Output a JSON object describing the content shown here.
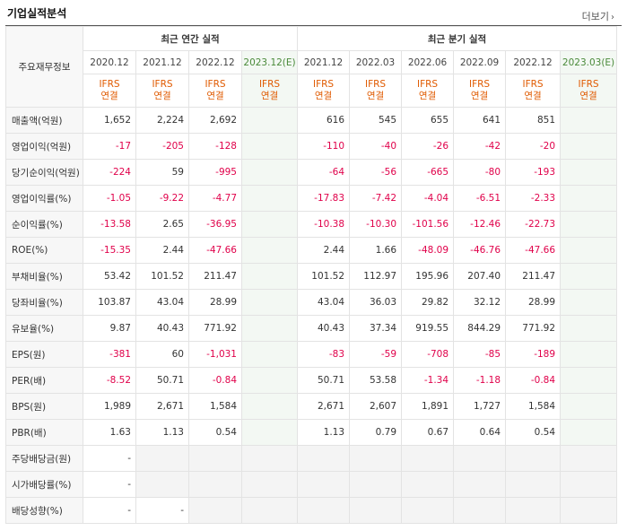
{
  "page": {
    "title": "기업실적분석",
    "more_label": "더보기"
  },
  "table": {
    "label_header": "주요재무정보",
    "group_annual": "최근 연간 실적",
    "group_quarter": "최근 분기 실적",
    "periods": [
      "2020.12",
      "2021.12",
      "2022.12",
      "2023.12(E)",
      "2021.12",
      "2022.03",
      "2022.06",
      "2022.09",
      "2022.12",
      "2023.03(E)"
    ],
    "ifrs_line1": "IFRS",
    "ifrs_line2": "연결",
    "rows": [
      {
        "label": "매출액(억원)",
        "values": [
          "1,652",
          "2,224",
          "2,692",
          "",
          "616",
          "545",
          "655",
          "641",
          "851",
          ""
        ]
      },
      {
        "label": "영업이익(억원)",
        "values": [
          "-17",
          "-205",
          "-128",
          "",
          "-110",
          "-40",
          "-26",
          "-42",
          "-20",
          ""
        ]
      },
      {
        "label": "당기순이익(억원)",
        "values": [
          "-224",
          "59",
          "-995",
          "",
          "-64",
          "-56",
          "-665",
          "-80",
          "-193",
          ""
        ]
      },
      {
        "label": "영업이익률(%)",
        "values": [
          "-1.05",
          "-9.22",
          "-4.77",
          "",
          "-17.83",
          "-7.42",
          "-4.04",
          "-6.51",
          "-2.33",
          ""
        ]
      },
      {
        "label": "순이익률(%)",
        "values": [
          "-13.58",
          "2.65",
          "-36.95",
          "",
          "-10.38",
          "-10.30",
          "-101.56",
          "-12.46",
          "-22.73",
          ""
        ]
      },
      {
        "label": "ROE(%)",
        "values": [
          "-15.35",
          "2.44",
          "-47.66",
          "",
          "2.44",
          "1.66",
          "-48.09",
          "-46.76",
          "-47.66",
          ""
        ]
      },
      {
        "label": "부채비율(%)",
        "values": [
          "53.42",
          "101.52",
          "211.47",
          "",
          "101.52",
          "112.97",
          "195.96",
          "207.40",
          "211.47",
          ""
        ]
      },
      {
        "label": "당좌비율(%)",
        "values": [
          "103.87",
          "43.04",
          "28.99",
          "",
          "43.04",
          "36.03",
          "29.82",
          "32.12",
          "28.99",
          ""
        ]
      },
      {
        "label": "유보율(%)",
        "values": [
          "9.87",
          "40.43",
          "771.92",
          "",
          "40.43",
          "37.34",
          "919.55",
          "844.29",
          "771.92",
          ""
        ]
      },
      {
        "label": "EPS(원)",
        "values": [
          "-381",
          "60",
          "-1,031",
          "",
          "-83",
          "-59",
          "-708",
          "-85",
          "-189",
          ""
        ]
      },
      {
        "label": "PER(배)",
        "values": [
          "-8.52",
          "50.71",
          "-0.84",
          "",
          "50.71",
          "53.58",
          "-1.34",
          "-1.18",
          "-0.84",
          ""
        ]
      },
      {
        "label": "BPS(원)",
        "values": [
          "1,989",
          "2,671",
          "1,584",
          "",
          "2,671",
          "2,607",
          "1,891",
          "1,727",
          "1,584",
          ""
        ]
      },
      {
        "label": "PBR(배)",
        "values": [
          "1.63",
          "1.13",
          "0.54",
          "",
          "1.13",
          "0.79",
          "0.67",
          "0.64",
          "0.54",
          ""
        ]
      },
      {
        "label": "주당배당금(원)",
        "values": [
          "-",
          null,
          null,
          null,
          null,
          null,
          null,
          null,
          null,
          null
        ]
      },
      {
        "label": "시가배당률(%)",
        "values": [
          "-",
          null,
          null,
          null,
          null,
          null,
          null,
          null,
          null,
          null
        ]
      },
      {
        "label": "배당성향(%)",
        "values": [
          "-",
          "-",
          null,
          null,
          null,
          null,
          null,
          null,
          null,
          null
        ]
      }
    ],
    "colors": {
      "negative": "#e0004a",
      "ifrs": "#e05a00",
      "estimate_bg": "#f3f8f3",
      "label_bg": "#f7f7f7"
    }
  }
}
